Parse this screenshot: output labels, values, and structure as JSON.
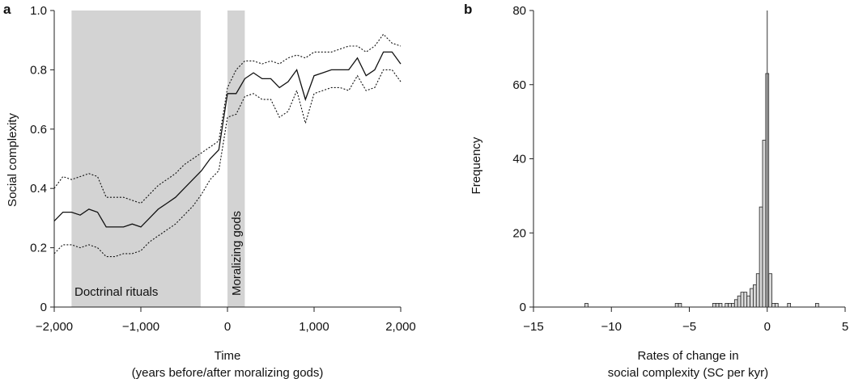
{
  "chart_data": [
    {
      "panel": "a",
      "type": "line",
      "xlabel": "Time",
      "xlabel_sub": "(years before/after moralizing gods)",
      "ylabel": "Social complexity",
      "xlim": [
        -2000,
        2000
      ],
      "ylim": [
        0,
        1.0
      ],
      "x_ticks": [
        -2000,
        -1000,
        0,
        1000,
        2000
      ],
      "x_tick_labels": [
        "−2,000",
        "−1,000",
        "0",
        "1,000",
        "2,000"
      ],
      "y_ticks": [
        0,
        0.2,
        0.4,
        0.6,
        0.8,
        1.0
      ],
      "y_tick_labels": [
        "0",
        "0.2",
        "0.4",
        "0.6",
        "0.8",
        "1.0"
      ],
      "bands": [
        {
          "label": "Doctrinal rituals",
          "x": [
            -1800,
            -310
          ],
          "color": "#d3d3d3",
          "orientation": "horizontal"
        },
        {
          "label": "Moralizing gods",
          "x": [
            0,
            200
          ],
          "color": "#d3d3d3",
          "orientation": "vertical"
        }
      ],
      "series": [
        {
          "role": "mean",
          "style": "solid",
          "x": [
            -2000,
            -1900,
            -1800,
            -1700,
            -1600,
            -1500,
            -1400,
            -1300,
            -1200,
            -1100,
            -1000,
            -900,
            -800,
            -700,
            -600,
            -500,
            -400,
            -300,
            -200,
            -100,
            0,
            100,
            200,
            300,
            400,
            500,
            600,
            700,
            800,
            900,
            1000,
            1100,
            1200,
            1300,
            1400,
            1500,
            1600,
            1700,
            1800,
            1900,
            2000
          ],
          "y": [
            0.29,
            0.32,
            0.32,
            0.31,
            0.33,
            0.32,
            0.27,
            0.27,
            0.27,
            0.28,
            0.27,
            0.3,
            0.33,
            0.35,
            0.37,
            0.4,
            0.43,
            0.46,
            0.5,
            0.53,
            0.72,
            0.72,
            0.77,
            0.79,
            0.77,
            0.77,
            0.74,
            0.76,
            0.8,
            0.7,
            0.78,
            0.79,
            0.8,
            0.8,
            0.8,
            0.84,
            0.78,
            0.8,
            0.86,
            0.86,
            0.82
          ]
        },
        {
          "role": "upper bound",
          "style": "dotted",
          "x": [
            -2000,
            -1900,
            -1800,
            -1700,
            -1600,
            -1500,
            -1400,
            -1300,
            -1200,
            -1100,
            -1000,
            -900,
            -800,
            -700,
            -600,
            -500,
            -400,
            -300,
            -200,
            -100,
            0,
            100,
            200,
            300,
            400,
            500,
            600,
            700,
            800,
            900,
            1000,
            1100,
            1200,
            1300,
            1400,
            1500,
            1600,
            1700,
            1800,
            1900,
            2000
          ],
          "y": [
            0.4,
            0.44,
            0.43,
            0.44,
            0.45,
            0.44,
            0.37,
            0.37,
            0.37,
            0.36,
            0.35,
            0.38,
            0.41,
            0.43,
            0.45,
            0.48,
            0.5,
            0.52,
            0.54,
            0.56,
            0.74,
            0.8,
            0.83,
            0.83,
            0.82,
            0.83,
            0.82,
            0.84,
            0.85,
            0.84,
            0.86,
            0.86,
            0.86,
            0.87,
            0.88,
            0.88,
            0.86,
            0.88,
            0.92,
            0.89,
            0.88
          ]
        },
        {
          "role": "lower bound",
          "style": "dotted",
          "x": [
            -2000,
            -1900,
            -1800,
            -1700,
            -1600,
            -1500,
            -1400,
            -1300,
            -1200,
            -1100,
            -1000,
            -900,
            -800,
            -700,
            -600,
            -500,
            -400,
            -300,
            -200,
            -100,
            0,
            100,
            200,
            300,
            400,
            500,
            600,
            700,
            800,
            900,
            1000,
            1100,
            1200,
            1300,
            1400,
            1500,
            1600,
            1700,
            1800,
            1900,
            2000
          ],
          "y": [
            0.18,
            0.21,
            0.21,
            0.2,
            0.21,
            0.2,
            0.17,
            0.17,
            0.18,
            0.18,
            0.19,
            0.22,
            0.24,
            0.26,
            0.28,
            0.31,
            0.34,
            0.38,
            0.43,
            0.46,
            0.64,
            0.65,
            0.71,
            0.72,
            0.7,
            0.7,
            0.64,
            0.66,
            0.73,
            0.62,
            0.72,
            0.73,
            0.74,
            0.74,
            0.73,
            0.78,
            0.73,
            0.74,
            0.8,
            0.8,
            0.76
          ]
        }
      ]
    },
    {
      "panel": "b",
      "type": "bar",
      "subtype": "histogram",
      "xlabel": "Rates of change in",
      "xlabel_sub": "social complexity (SC per kyr)",
      "ylabel": "Frequency",
      "xlim": [
        -15,
        5
      ],
      "ylim": [
        0,
        80
      ],
      "x_ticks": [
        -15,
        -10,
        -5,
        0,
        5
      ],
      "x_tick_labels": [
        "−15",
        "−10",
        "−5",
        "0",
        "5"
      ],
      "y_ticks": [
        0,
        20,
        40,
        60,
        80
      ],
      "y_tick_labels": [
        "0",
        "20",
        "40",
        "60",
        "80"
      ],
      "bin_width": 0.2,
      "reference_line_x": 0,
      "bins": [
        {
          "x": -11.6,
          "count": 1
        },
        {
          "x": -5.8,
          "count": 1
        },
        {
          "x": -5.6,
          "count": 1
        },
        {
          "x": -3.4,
          "count": 1
        },
        {
          "x": -3.2,
          "count": 1
        },
        {
          "x": -3.0,
          "count": 1
        },
        {
          "x": -2.6,
          "count": 1
        },
        {
          "x": -2.4,
          "count": 1
        },
        {
          "x": -2.2,
          "count": 1
        },
        {
          "x": -2.0,
          "count": 2
        },
        {
          "x": -1.8,
          "count": 3
        },
        {
          "x": -1.6,
          "count": 4
        },
        {
          "x": -1.4,
          "count": 4
        },
        {
          "x": -1.2,
          "count": 3
        },
        {
          "x": -1.0,
          "count": 5
        },
        {
          "x": -0.8,
          "count": 6
        },
        {
          "x": -0.6,
          "count": 9
        },
        {
          "x": -0.4,
          "count": 27
        },
        {
          "x": -0.2,
          "count": 45
        },
        {
          "x": 0.0,
          "count": 63
        },
        {
          "x": 0.2,
          "count": 9
        },
        {
          "x": 0.4,
          "count": 1
        },
        {
          "x": 0.6,
          "count": 1
        },
        {
          "x": 1.4,
          "count": 1
        },
        {
          "x": 3.2,
          "count": 1
        }
      ]
    }
  ]
}
